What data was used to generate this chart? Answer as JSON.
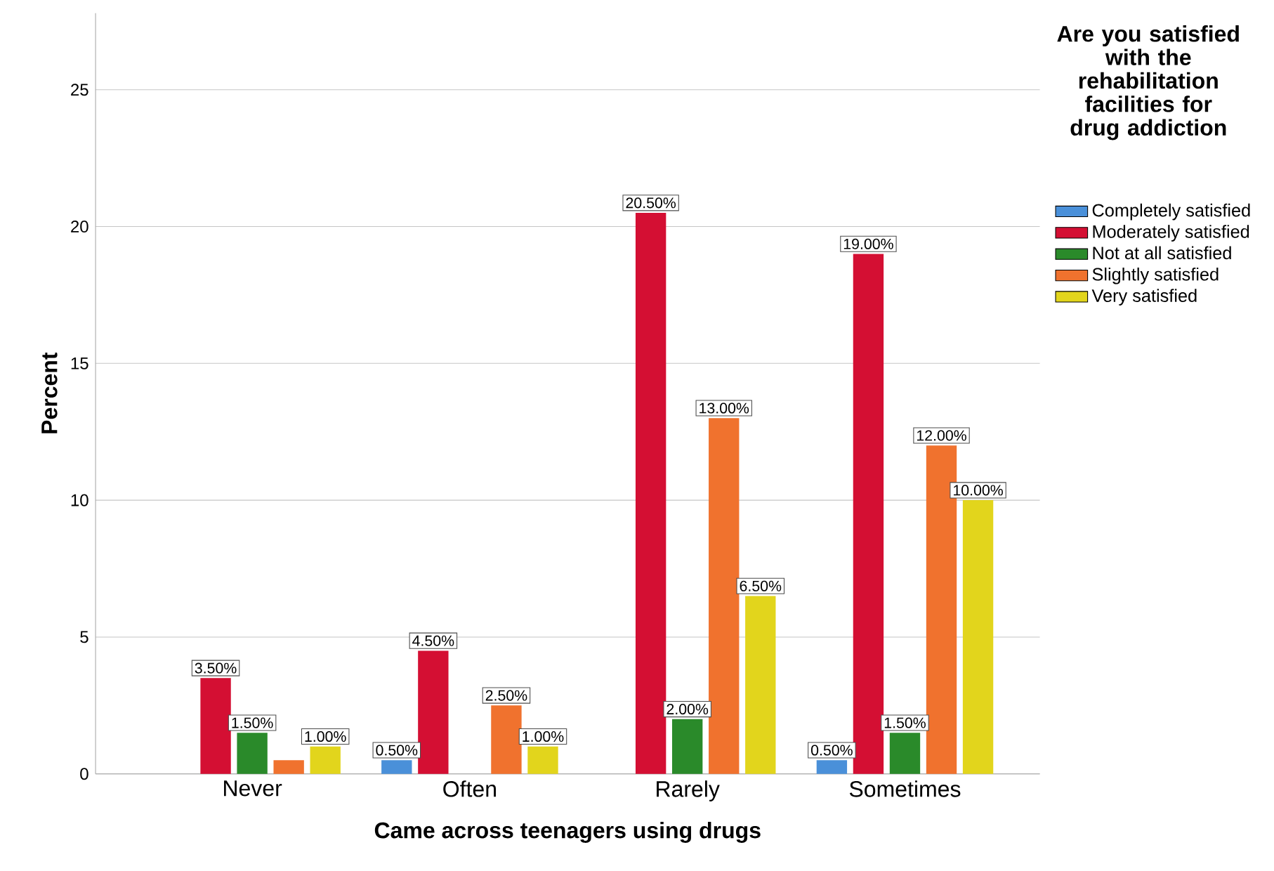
{
  "chart_data": {
    "type": "bar",
    "xlabel": "Came across teenagers using drugs",
    "ylabel": "Percent",
    "legend_title": "Are you satisfied with the rehabilitation facilities for drug addiction",
    "categories": [
      "Never",
      "Often",
      "Rarely",
      "Sometimes"
    ],
    "series": [
      {
        "name": "Completely satisfied",
        "color": "#4a90d9",
        "values": [
          null,
          0.5,
          null,
          0.5
        ],
        "value_labels": [
          null,
          "0.50%",
          null,
          "0.50%"
        ]
      },
      {
        "name": "Moderately satisfied",
        "color": "#d40f33",
        "values": [
          3.5,
          4.5,
          20.5,
          19.0
        ],
        "value_labels": [
          "3.50%",
          "4.50%",
          "20.50%",
          "19.00%"
        ]
      },
      {
        "name": "Not at all satisfied",
        "color": "#2a8a2a",
        "values": [
          1.5,
          null,
          2.0,
          1.5
        ],
        "value_labels": [
          "1.50%",
          null,
          "2.00%",
          "1.50%"
        ]
      },
      {
        "name": "Slightly satisfied",
        "color": "#f0722e",
        "values": [
          0.5,
          2.5,
          13.0,
          12.0
        ],
        "value_labels": [
          null,
          "2.50%",
          "13.00%",
          "12.00%"
        ]
      },
      {
        "name": "Very satisfied",
        "color": "#e2d51c",
        "values": [
          1.0,
          1.0,
          6.5,
          10.0
        ],
        "value_labels": [
          "1.00%",
          "1.00%",
          "6.50%",
          "10.00%"
        ]
      }
    ],
    "ylim": [
      0,
      27.8
    ],
    "yticks": [
      0,
      5,
      10,
      15,
      20,
      25
    ],
    "grid": "y",
    "legend": "right"
  }
}
